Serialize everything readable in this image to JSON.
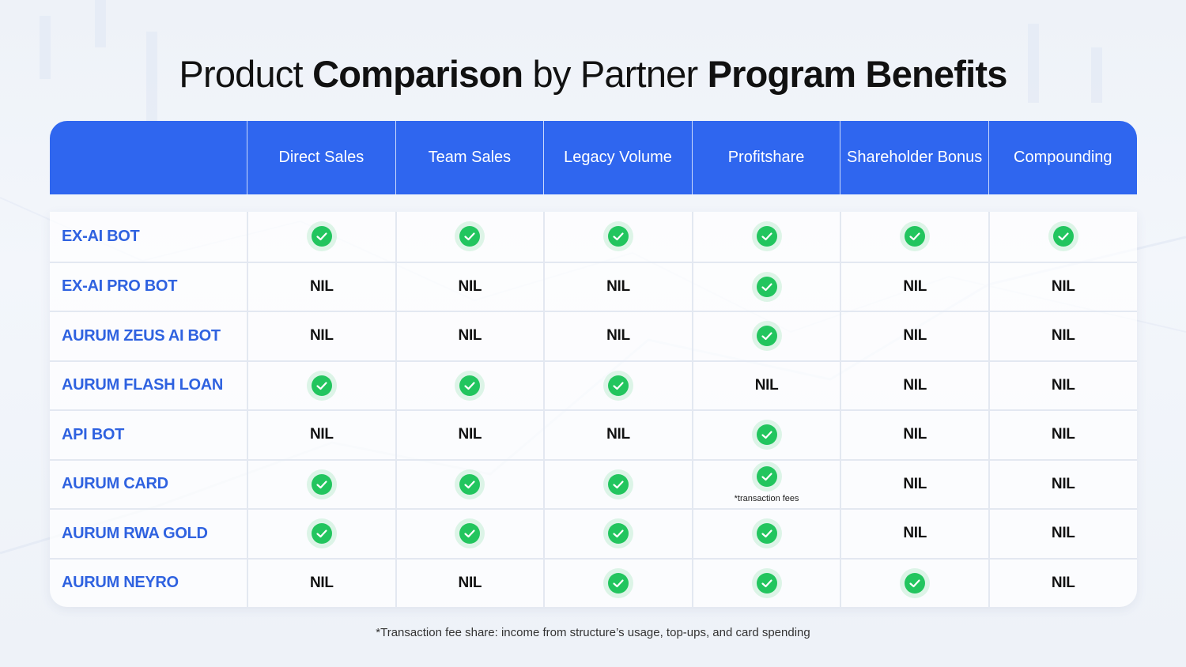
{
  "title": {
    "part1": "Product ",
    "part2": "Comparison",
    "part3": " by Partner ",
    "part4": "Program Benefits"
  },
  "colors": {
    "header_bg": "#2f66ef",
    "product_name": "#2f62e0",
    "check": "#22c55e"
  },
  "columns": [
    "Direct Sales",
    "Team Sales",
    "Legacy Volume",
    "Profitshare",
    "Shareholder Bonus",
    "Compounding"
  ],
  "rows": [
    {
      "name": "EX-AI BOT",
      "cells": [
        {
          "type": "check"
        },
        {
          "type": "check"
        },
        {
          "type": "check"
        },
        {
          "type": "check"
        },
        {
          "type": "check"
        },
        {
          "type": "check"
        }
      ]
    },
    {
      "name": "EX-AI PRO BOT",
      "cells": [
        {
          "type": "nil",
          "text": "NIL"
        },
        {
          "type": "nil",
          "text": "NIL"
        },
        {
          "type": "nil",
          "text": "NIL"
        },
        {
          "type": "check"
        },
        {
          "type": "nil",
          "text": "NIL"
        },
        {
          "type": "nil",
          "text": "NIL"
        }
      ]
    },
    {
      "name": "AURUM ZEUS AI BOT",
      "cells": [
        {
          "type": "nil",
          "text": "NIL"
        },
        {
          "type": "nil",
          "text": "NIL"
        },
        {
          "type": "nil",
          "text": "NIL"
        },
        {
          "type": "check"
        },
        {
          "type": "nil",
          "text": "NIL"
        },
        {
          "type": "nil",
          "text": "NIL"
        }
      ]
    },
    {
      "name": "AURUM FLASH LOAN",
      "cells": [
        {
          "type": "check"
        },
        {
          "type": "check"
        },
        {
          "type": "check"
        },
        {
          "type": "nil",
          "text": "NIL"
        },
        {
          "type": "nil",
          "text": "NIL"
        },
        {
          "type": "nil",
          "text": "NIL"
        }
      ]
    },
    {
      "name": "API BOT",
      "cells": [
        {
          "type": "nil",
          "text": "NIL"
        },
        {
          "type": "nil",
          "text": "NIL"
        },
        {
          "type": "nil",
          "text": "NIL"
        },
        {
          "type": "check"
        },
        {
          "type": "nil",
          "text": "NIL"
        },
        {
          "type": "nil",
          "text": "NIL"
        }
      ]
    },
    {
      "name": "AURUM CARD",
      "cells": [
        {
          "type": "check"
        },
        {
          "type": "check"
        },
        {
          "type": "check"
        },
        {
          "type": "check",
          "note": "*transaction fees"
        },
        {
          "type": "nil",
          "text": "NIL"
        },
        {
          "type": "nil",
          "text": "NIL"
        }
      ]
    },
    {
      "name": "AURUM RWA GOLD",
      "cells": [
        {
          "type": "check"
        },
        {
          "type": "check"
        },
        {
          "type": "check"
        },
        {
          "type": "check"
        },
        {
          "type": "nil",
          "text": "NIL"
        },
        {
          "type": "nil",
          "text": "NIL"
        }
      ]
    },
    {
      "name": "AURUM NEYRO",
      "cells": [
        {
          "type": "nil",
          "text": "NIL"
        },
        {
          "type": "nil",
          "text": "NIL"
        },
        {
          "type": "check"
        },
        {
          "type": "check"
        },
        {
          "type": "check"
        },
        {
          "type": "nil",
          "text": "NIL"
        }
      ]
    }
  ],
  "footnote": "*Transaction fee share: income from structure’s usage, top-ups, and card spending"
}
